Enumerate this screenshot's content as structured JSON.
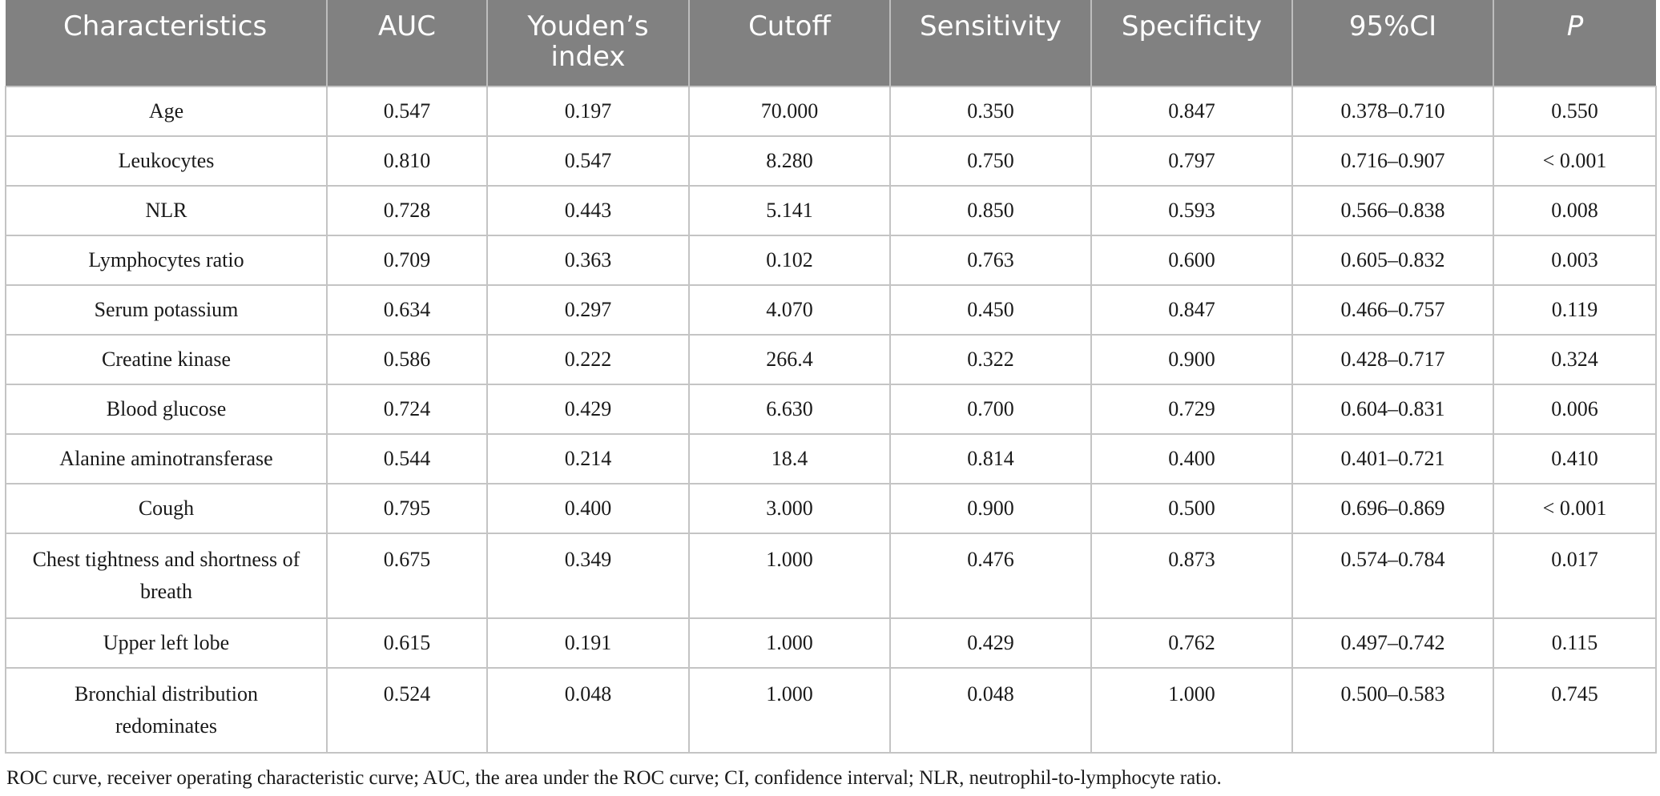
{
  "table": {
    "headers": [
      "Characteristics",
      "AUC",
      "Youden’s index",
      "Cutoff",
      "Sensitivity",
      "Specificity",
      "95%CI",
      "P"
    ],
    "rows": [
      [
        "Age",
        "0.547",
        "0.197",
        "70.000",
        "0.350",
        "0.847",
        "0.378–0.710",
        "0.550"
      ],
      [
        "Leukocytes",
        "0.810",
        "0.547",
        "8.280",
        "0.750",
        "0.797",
        "0.716–0.907",
        "< 0.001"
      ],
      [
        "NLR",
        "0.728",
        "0.443",
        "5.141",
        "0.850",
        "0.593",
        "0.566–0.838",
        "0.008"
      ],
      [
        "Lymphocytes ratio",
        "0.709",
        "0.363",
        "0.102",
        "0.763",
        "0.600",
        "0.605–0.832",
        "0.003"
      ],
      [
        "Serum potassium",
        "0.634",
        "0.297",
        "4.070",
        "0.450",
        "0.847",
        "0.466–0.757",
        "0.119"
      ],
      [
        "Creatine kinase",
        "0.586",
        "0.222",
        "266.4",
        "0.322",
        "0.900",
        "0.428–0.717",
        "0.324"
      ],
      [
        "Blood glucose",
        "0.724",
        "0.429",
        "6.630",
        "0.700",
        "0.729",
        "0.604–0.831",
        "0.006"
      ],
      [
        "Alanine aminotransferase",
        "0.544",
        "0.214",
        "18.4",
        "0.814",
        "0.400",
        "0.401–0.721",
        "0.410"
      ],
      [
        "Cough",
        "0.795",
        "0.400",
        "3.000",
        "0.900",
        "0.500",
        "0.696–0.869",
        "< 0.001"
      ],
      [
        "Chest tightness and shortness of breath",
        "0.675",
        "0.349",
        "1.000",
        "0.476",
        "0.873",
        "0.574–0.784",
        "0.017"
      ],
      [
        "Upper left lobe",
        "0.615",
        "0.191",
        "1.000",
        "0.429",
        "0.762",
        "0.497–0.742",
        "0.115"
      ],
      [
        "Bronchial distribution redominates",
        "0.524",
        "0.048",
        "1.000",
        "0.048",
        "1.000",
        "0.500–0.583",
        "0.745"
      ]
    ]
  },
  "footnote": "ROC curve, receiver operating characteristic curve; AUC, the area under the ROC curve; CI, confidence interval; NLR, neutrophil-to-lymphocyte ratio."
}
